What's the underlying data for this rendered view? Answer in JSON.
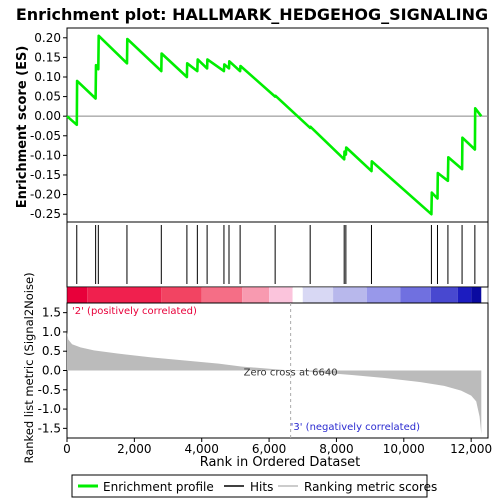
{
  "chart_data": {
    "type": "line",
    "title": "Enrichment plot: HALLMARK_HEDGEHOG_SIGNALING",
    "es_panel": {
      "ylabel": "Enrichment score (ES)",
      "ylim": [
        -0.27,
        0.225
      ],
      "yticks": [
        -0.25,
        -0.2,
        -0.15,
        -0.1,
        -0.05,
        0.0,
        0.05,
        0.1,
        0.15,
        0.2
      ],
      "ytick_labels": [
        "-0.25",
        "-0.20",
        "-0.15",
        "-0.10",
        "-0.05",
        "0.00",
        "0.05",
        "0.10",
        "0.15",
        "0.20"
      ],
      "series": [
        {
          "name": "Enrichment profile",
          "color": "#00ee00",
          "x": [
            0,
            290,
            300,
            850,
            860,
            930,
            940,
            1780,
            1790,
            2800,
            2810,
            3560,
            3570,
            3870,
            3880,
            4160,
            4170,
            4660,
            4670,
            4810,
            4820,
            5140,
            5150,
            6180,
            6190,
            7220,
            7230,
            8230,
            8240,
            8280,
            8290,
            9040,
            9050,
            10820,
            10830,
            11000,
            11010,
            11310,
            11320,
            11730,
            11740,
            12110,
            12120,
            12300
          ],
          "y": [
            0.0,
            -0.022,
            0.09,
            0.045,
            0.13,
            0.12,
            0.205,
            0.135,
            0.197,
            0.115,
            0.16,
            0.1,
            0.135,
            0.115,
            0.145,
            0.122,
            0.145,
            0.115,
            0.132,
            0.122,
            0.14,
            0.115,
            0.128,
            0.05,
            0.052,
            -0.03,
            -0.027,
            -0.11,
            -0.09,
            -0.098,
            -0.08,
            -0.14,
            -0.115,
            -0.25,
            -0.195,
            -0.21,
            -0.145,
            -0.165,
            -0.105,
            -0.135,
            -0.055,
            -0.085,
            0.02,
            0.0
          ]
        }
      ]
    },
    "hits": [
      290,
      850,
      930,
      1780,
      2800,
      3560,
      3870,
      4160,
      4660,
      4810,
      5140,
      6180,
      7220,
      8230,
      8280,
      9040,
      10820,
      11000,
      11310,
      11730,
      12110
    ],
    "heatmap_bar": {
      "colors": [
        "#e8003a",
        "#f0204e",
        "#f24462",
        "#f56e86",
        "#f89ab0",
        "#fbc4dc",
        "#ffffff",
        "#d8d8f4",
        "#b8b8ec",
        "#9898ea",
        "#7070e0",
        "#4848d0",
        "#1c1cc0",
        "#0a0aa0"
      ],
      "boundaries": [
        0,
        600,
        2800,
        4000,
        5200,
        6000,
        6700,
        7000,
        7900,
        8900,
        9900,
        10800,
        11600,
        12000,
        12300
      ]
    },
    "metric_panel": {
      "ylabel": "Ranked list metric (Signal2Noise)",
      "ylim": [
        -1.75,
        1.75
      ],
      "yticks": [
        -1.5,
        -1.0,
        -0.5,
        0.0,
        0.5,
        1.0,
        1.5
      ],
      "ytick_labels": [
        "-1.5",
        "-1.0",
        "-0.5",
        "0.0",
        "0.5",
        "1.0",
        "1.5"
      ],
      "profile_x": [
        0,
        40,
        150,
        400,
        800,
        1500,
        2500,
        3500,
        4500,
        5200,
        6640,
        7500,
        8500,
        9500,
        10500,
        11200,
        11700,
        12000,
        12150,
        12250,
        12300
      ],
      "profile_y": [
        1.0,
        0.8,
        0.68,
        0.6,
        0.52,
        0.44,
        0.34,
        0.26,
        0.18,
        0.1,
        0.0,
        -0.05,
        -0.12,
        -0.2,
        -0.3,
        -0.4,
        -0.52,
        -0.65,
        -0.8,
        -1.2,
        -1.65
      ],
      "label_positive": "'2' (positively correlated)",
      "label_negative": "'3' (negatively correlated)",
      "zero_cross_label": "Zero cross at 6640",
      "zero_cross_x": 6640
    },
    "xlabel": "Rank in Ordered Dataset",
    "xlim": [
      0,
      12500
    ],
    "xticks": [
      0,
      2000,
      4000,
      6000,
      8000,
      10000,
      12000
    ],
    "xtick_labels": [
      "0",
      "2,000",
      "4,000",
      "6,000",
      "8,000",
      "10,000",
      "12,000"
    ],
    "legend": {
      "position": "bottom",
      "items": [
        {
          "label": "Enrichment profile",
          "color": "#00ee00"
        },
        {
          "label": "Hits",
          "color": "#000000"
        },
        {
          "label": "Ranking metric scores",
          "color": "#bbbbbb"
        }
      ]
    }
  }
}
